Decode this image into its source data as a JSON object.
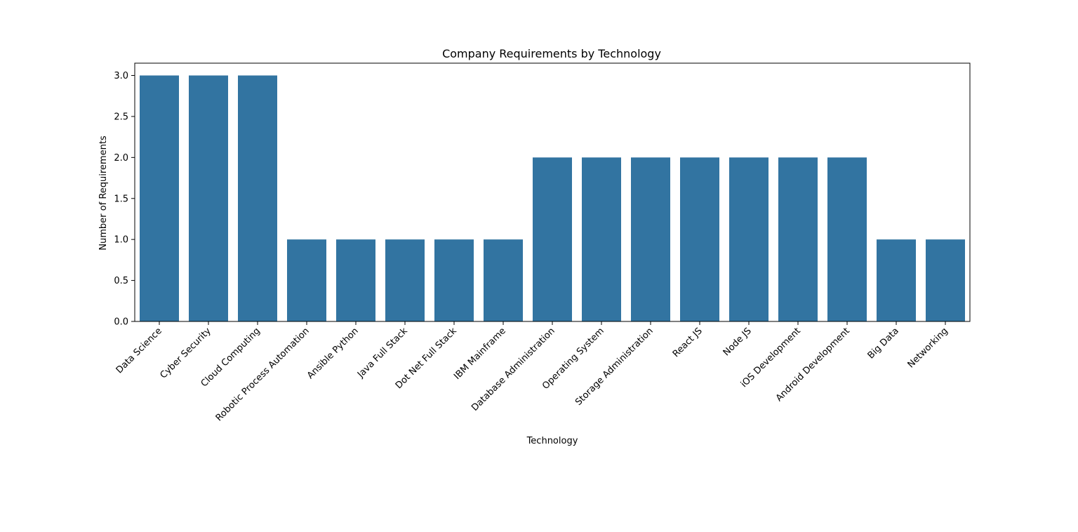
{
  "chart_data": {
    "type": "bar",
    "title": "Company Requirements by Technology",
    "xlabel": "Technology",
    "ylabel": "Number of Requirements",
    "categories": [
      "Data Science",
      "Cyber Security",
      "Cloud Computing",
      "Robotic Process Automation",
      "Ansible Python",
      "Java Full Stack",
      "Dot Net Full Stack",
      "IBM Mainframe",
      "Database Administration",
      "Operating System",
      "Storage Administration",
      "React JS",
      "Node JS",
      "iOS Development",
      "Android Development",
      "Big Data",
      "Networking"
    ],
    "values": [
      3,
      3,
      3,
      1,
      1,
      1,
      1,
      1,
      2,
      2,
      2,
      2,
      2,
      2,
      2,
      1,
      1
    ],
    "ylim": [
      0,
      3.15
    ],
    "yticks": [
      "0.0",
      "0.5",
      "1.0",
      "1.5",
      "2.0",
      "2.5",
      "3.0"
    ],
    "grid": false,
    "bar_color": "#3274a1",
    "xtick_rotation": 45
  }
}
